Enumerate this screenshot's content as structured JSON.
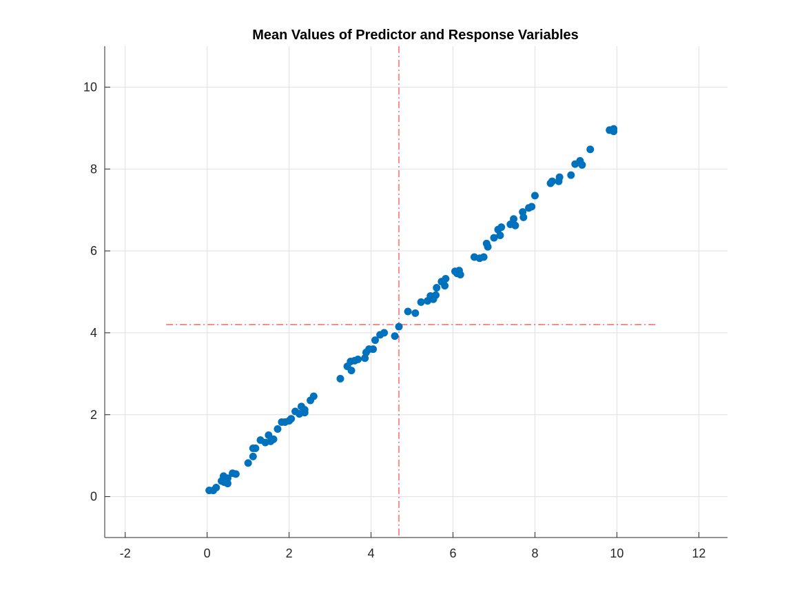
{
  "chart_data": {
    "type": "scatter",
    "title": "Mean Values of Predictor and Response Variables",
    "xlabel": "",
    "ylabel": "",
    "xlim": [
      -2.5,
      12.7
    ],
    "ylim": [
      -1,
      11
    ],
    "xticks": [
      -2,
      0,
      2,
      4,
      6,
      8,
      10,
      12
    ],
    "yticks": [
      0,
      2,
      4,
      6,
      8,
      10
    ],
    "xtick_labels": [
      "-2",
      "0",
      "2",
      "4",
      "6",
      "8",
      "10",
      "12"
    ],
    "ytick_labels": [
      "0",
      "2",
      "4",
      "6",
      "8",
      "10"
    ],
    "grid": true,
    "marker_color": "#0072BD",
    "reference_line_color": "#FF0000",
    "reference_lines": {
      "vertical": {
        "x": 4.68,
        "style": "dash-dot"
      },
      "horizontal": {
        "y": 4.2,
        "x_range": [
          -1,
          11
        ],
        "style": "dash-dot"
      }
    },
    "series": [
      {
        "points": [
          [
            0.05,
            0.15
          ],
          [
            0.15,
            0.15
          ],
          [
            0.22,
            0.22
          ],
          [
            0.35,
            0.38
          ],
          [
            0.4,
            0.5
          ],
          [
            0.42,
            0.35
          ],
          [
            0.5,
            0.32
          ],
          [
            0.5,
            0.45
          ],
          [
            0.62,
            0.57
          ],
          [
            0.7,
            0.55
          ],
          [
            1.0,
            0.82
          ],
          [
            1.12,
            0.98
          ],
          [
            1.12,
            1.18
          ],
          [
            1.18,
            1.18
          ],
          [
            1.3,
            1.38
          ],
          [
            1.42,
            1.32
          ],
          [
            1.5,
            1.5
          ],
          [
            1.55,
            1.35
          ],
          [
            1.62,
            1.4
          ],
          [
            1.72,
            1.65
          ],
          [
            1.82,
            1.82
          ],
          [
            1.9,
            1.82
          ],
          [
            2.0,
            1.85
          ],
          [
            2.05,
            1.9
          ],
          [
            2.15,
            2.08
          ],
          [
            2.25,
            2.02
          ],
          [
            2.3,
            2.2
          ],
          [
            2.38,
            2.12
          ],
          [
            2.38,
            2.05
          ],
          [
            2.52,
            2.35
          ],
          [
            2.6,
            2.45
          ],
          [
            3.25,
            2.88
          ],
          [
            3.42,
            3.18
          ],
          [
            3.5,
            3.3
          ],
          [
            3.52,
            3.08
          ],
          [
            3.6,
            3.32
          ],
          [
            3.68,
            3.35
          ],
          [
            3.85,
            3.38
          ],
          [
            3.88,
            3.52
          ],
          [
            3.95,
            3.6
          ],
          [
            4.05,
            3.6
          ],
          [
            4.1,
            3.82
          ],
          [
            4.22,
            3.95
          ],
          [
            4.32,
            4.0
          ],
          [
            4.58,
            3.92
          ],
          [
            4.68,
            4.15
          ],
          [
            4.9,
            4.52
          ],
          [
            5.08,
            4.48
          ],
          [
            5.22,
            4.75
          ],
          [
            5.38,
            4.78
          ],
          [
            5.45,
            4.9
          ],
          [
            5.52,
            4.82
          ],
          [
            5.58,
            4.92
          ],
          [
            5.6,
            5.1
          ],
          [
            5.72,
            5.25
          ],
          [
            5.8,
            5.15
          ],
          [
            5.82,
            5.32
          ],
          [
            6.05,
            5.5
          ],
          [
            6.1,
            5.45
          ],
          [
            6.15,
            5.52
          ],
          [
            6.18,
            5.42
          ],
          [
            6.52,
            5.85
          ],
          [
            6.65,
            5.82
          ],
          [
            6.75,
            5.85
          ],
          [
            6.82,
            6.18
          ],
          [
            6.85,
            6.1
          ],
          [
            7.0,
            6.32
          ],
          [
            7.1,
            6.52
          ],
          [
            7.15,
            6.38
          ],
          [
            7.18,
            6.58
          ],
          [
            7.4,
            6.65
          ],
          [
            7.48,
            6.78
          ],
          [
            7.52,
            6.62
          ],
          [
            7.7,
            6.95
          ],
          [
            7.72,
            6.82
          ],
          [
            7.85,
            7.05
          ],
          [
            7.92,
            7.08
          ],
          [
            8.0,
            7.35
          ],
          [
            8.38,
            7.65
          ],
          [
            8.42,
            7.7
          ],
          [
            8.58,
            7.7
          ],
          [
            8.6,
            7.8
          ],
          [
            8.88,
            7.85
          ],
          [
            8.98,
            8.12
          ],
          [
            9.1,
            8.2
          ],
          [
            9.15,
            8.1
          ],
          [
            9.35,
            8.48
          ],
          [
            9.82,
            8.95
          ],
          [
            9.92,
            8.98
          ],
          [
            9.92,
            8.92
          ]
        ]
      }
    ]
  }
}
